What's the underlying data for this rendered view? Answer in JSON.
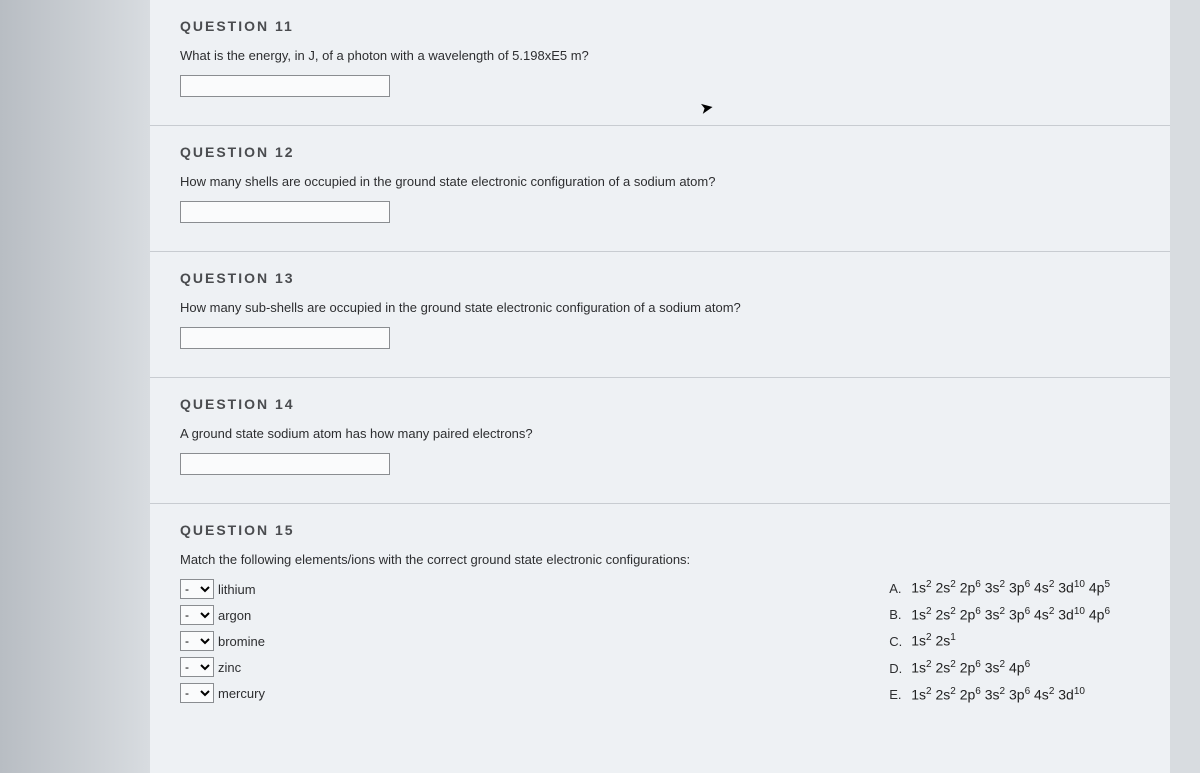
{
  "questions": [
    {
      "title": "QUESTION 11",
      "prompt": "What is the energy, in J, of a photon with a wavelength of 5.198xE5 m?",
      "input_value": ""
    },
    {
      "title": "QUESTION 12",
      "prompt": "How many shells are occupied in the ground state electronic configuration of a sodium atom?",
      "input_value": ""
    },
    {
      "title": "QUESTION 13",
      "prompt": "How many sub-shells are occupied in the ground state electronic configuration of a sodium atom?",
      "input_value": ""
    },
    {
      "title": "QUESTION 14",
      "prompt": "A ground state sodium atom has how many paired electrons?",
      "input_value": ""
    }
  ],
  "q15": {
    "title": "QUESTION 15",
    "prompt": "Match the following elements/ions with the correct ground state electronic configurations:",
    "left_items": [
      {
        "label": "lithium",
        "selected": "-"
      },
      {
        "label": "argon",
        "selected": "-"
      },
      {
        "label": "bromine",
        "selected": "-"
      },
      {
        "label": "zinc",
        "selected": "-"
      },
      {
        "label": "mercury",
        "selected": "-"
      }
    ],
    "options": [
      {
        "letter": "A.",
        "config": [
          [
            "1s",
            "2"
          ],
          [
            "2s",
            "2"
          ],
          [
            "2p",
            "6"
          ],
          [
            "3s",
            "2"
          ],
          [
            "3p",
            "6"
          ],
          [
            "4s",
            "2"
          ],
          [
            "3d",
            "10"
          ],
          [
            "4p",
            "5"
          ]
        ]
      },
      {
        "letter": "B.",
        "config": [
          [
            "1s",
            "2"
          ],
          [
            "2s",
            "2"
          ],
          [
            "2p",
            "6"
          ],
          [
            "3s",
            "2"
          ],
          [
            "3p",
            "6"
          ],
          [
            "4s",
            "2"
          ],
          [
            "3d",
            "10"
          ],
          [
            "4p",
            "6"
          ]
        ]
      },
      {
        "letter": "C.",
        "config": [
          [
            "1s",
            "2"
          ],
          [
            "2s",
            "1"
          ]
        ]
      },
      {
        "letter": "D.",
        "config": [
          [
            "1s",
            "2"
          ],
          [
            "2s",
            "2"
          ],
          [
            "2p",
            "6"
          ],
          [
            "3s",
            "2"
          ],
          [
            "4p",
            "6"
          ]
        ]
      },
      {
        "letter": "E.",
        "config": [
          [
            "1s",
            "2"
          ],
          [
            "2s",
            "2"
          ],
          [
            "2p",
            "6"
          ],
          [
            "3s",
            "2"
          ],
          [
            "3p",
            "6"
          ],
          [
            "4s",
            "2"
          ],
          [
            "3d",
            "10"
          ]
        ]
      }
    ]
  },
  "colors": {
    "page_bg": "#eef1f4",
    "body_bg": "#d8dce0",
    "divider": "#c8ccd1",
    "title_text": "#4a4c4f",
    "prompt_text": "#2d2e30",
    "input_border": "#8a8d91",
    "input_bg": "#fafbfc"
  }
}
